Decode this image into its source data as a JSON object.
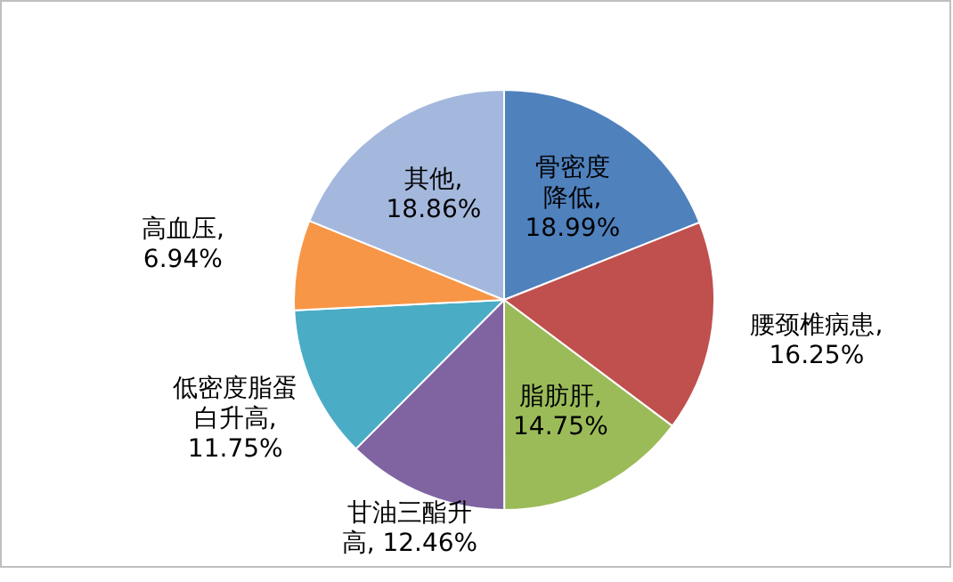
{
  "chart_data": {
    "type": "pie",
    "categories": [
      "骨密度降低",
      "腰颈椎病患",
      "脂肪肝",
      "甘油三酯升高",
      "低密度脂蛋白升高",
      "高血压",
      "其他"
    ],
    "values": [
      18.99,
      16.25,
      14.75,
      12.46,
      11.75,
      6.94,
      18.86
    ],
    "colors": [
      "#4f81bd",
      "#c0504d",
      "#9bbb59",
      "#8064a2",
      "#4bacc6",
      "#f79646",
      "#a4b8dd"
    ],
    "value_labels": [
      ", 18.99%",
      ", 16.25%",
      ", 14.75%",
      ", 12.46%",
      ", 11.75%",
      ", 6.94%",
      ", 18.86%"
    ],
    "legend": false
  }
}
